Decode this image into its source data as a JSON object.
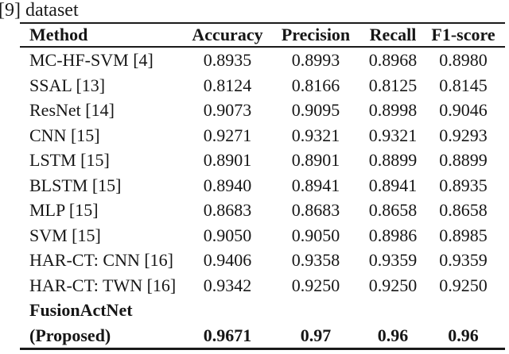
{
  "caption": "[9] dataset",
  "colors": {
    "background": "#ffffff",
    "text": "#161616",
    "rule": "#1a1a1a"
  },
  "table": {
    "columns": [
      "Method",
      "Accuracy",
      "Precision",
      "Recall",
      "F1-score"
    ],
    "rows": [
      {
        "method_lines": [
          "MC-HF-SVM [4]"
        ],
        "values": [
          "0.8935",
          "0.8993",
          "0.8968",
          "0.8980"
        ],
        "bold": false
      },
      {
        "method_lines": [
          "SSAL [13]"
        ],
        "values": [
          "0.8124",
          "0.8166",
          "0.8125",
          "0.8145"
        ],
        "bold": false
      },
      {
        "method_lines": [
          "ResNet [14]"
        ],
        "values": [
          "0.9073",
          "0.9095",
          "0.8998",
          "0.9046"
        ],
        "bold": false
      },
      {
        "method_lines": [
          "CNN [15]"
        ],
        "values": [
          "0.9271",
          "0.9321",
          "0.9321",
          "0.9293"
        ],
        "bold": false
      },
      {
        "method_lines": [
          "LSTM [15]"
        ],
        "values": [
          "0.8901",
          "0.8901",
          "0.8899",
          "0.8899"
        ],
        "bold": false
      },
      {
        "method_lines": [
          "BLSTM [15]"
        ],
        "values": [
          "0.8940",
          "0.8941",
          "0.8941",
          "0.8935"
        ],
        "bold": false
      },
      {
        "method_lines": [
          "MLP [15]"
        ],
        "values": [
          "0.8683",
          "0.8683",
          "0.8658",
          "0.8658"
        ],
        "bold": false
      },
      {
        "method_lines": [
          "SVM [15]"
        ],
        "values": [
          "0.9050",
          "0.9050",
          "0.8986",
          "0.8985"
        ],
        "bold": false
      },
      {
        "method_lines": [
          "HAR-CT: CNN [16]"
        ],
        "values": [
          "0.9406",
          "0.9358",
          "0.9359",
          "0.9359"
        ],
        "bold": false
      },
      {
        "method_lines": [
          "HAR-CT: TWN [16]"
        ],
        "values": [
          "0.9342",
          "0.9250",
          "0.9250",
          "0.9250"
        ],
        "bold": false
      },
      {
        "method_lines": [
          "FusionActNet",
          "(Proposed)"
        ],
        "values": [
          "0.9671",
          "0.97",
          "0.96",
          "0.96"
        ],
        "bold": true
      }
    ]
  }
}
